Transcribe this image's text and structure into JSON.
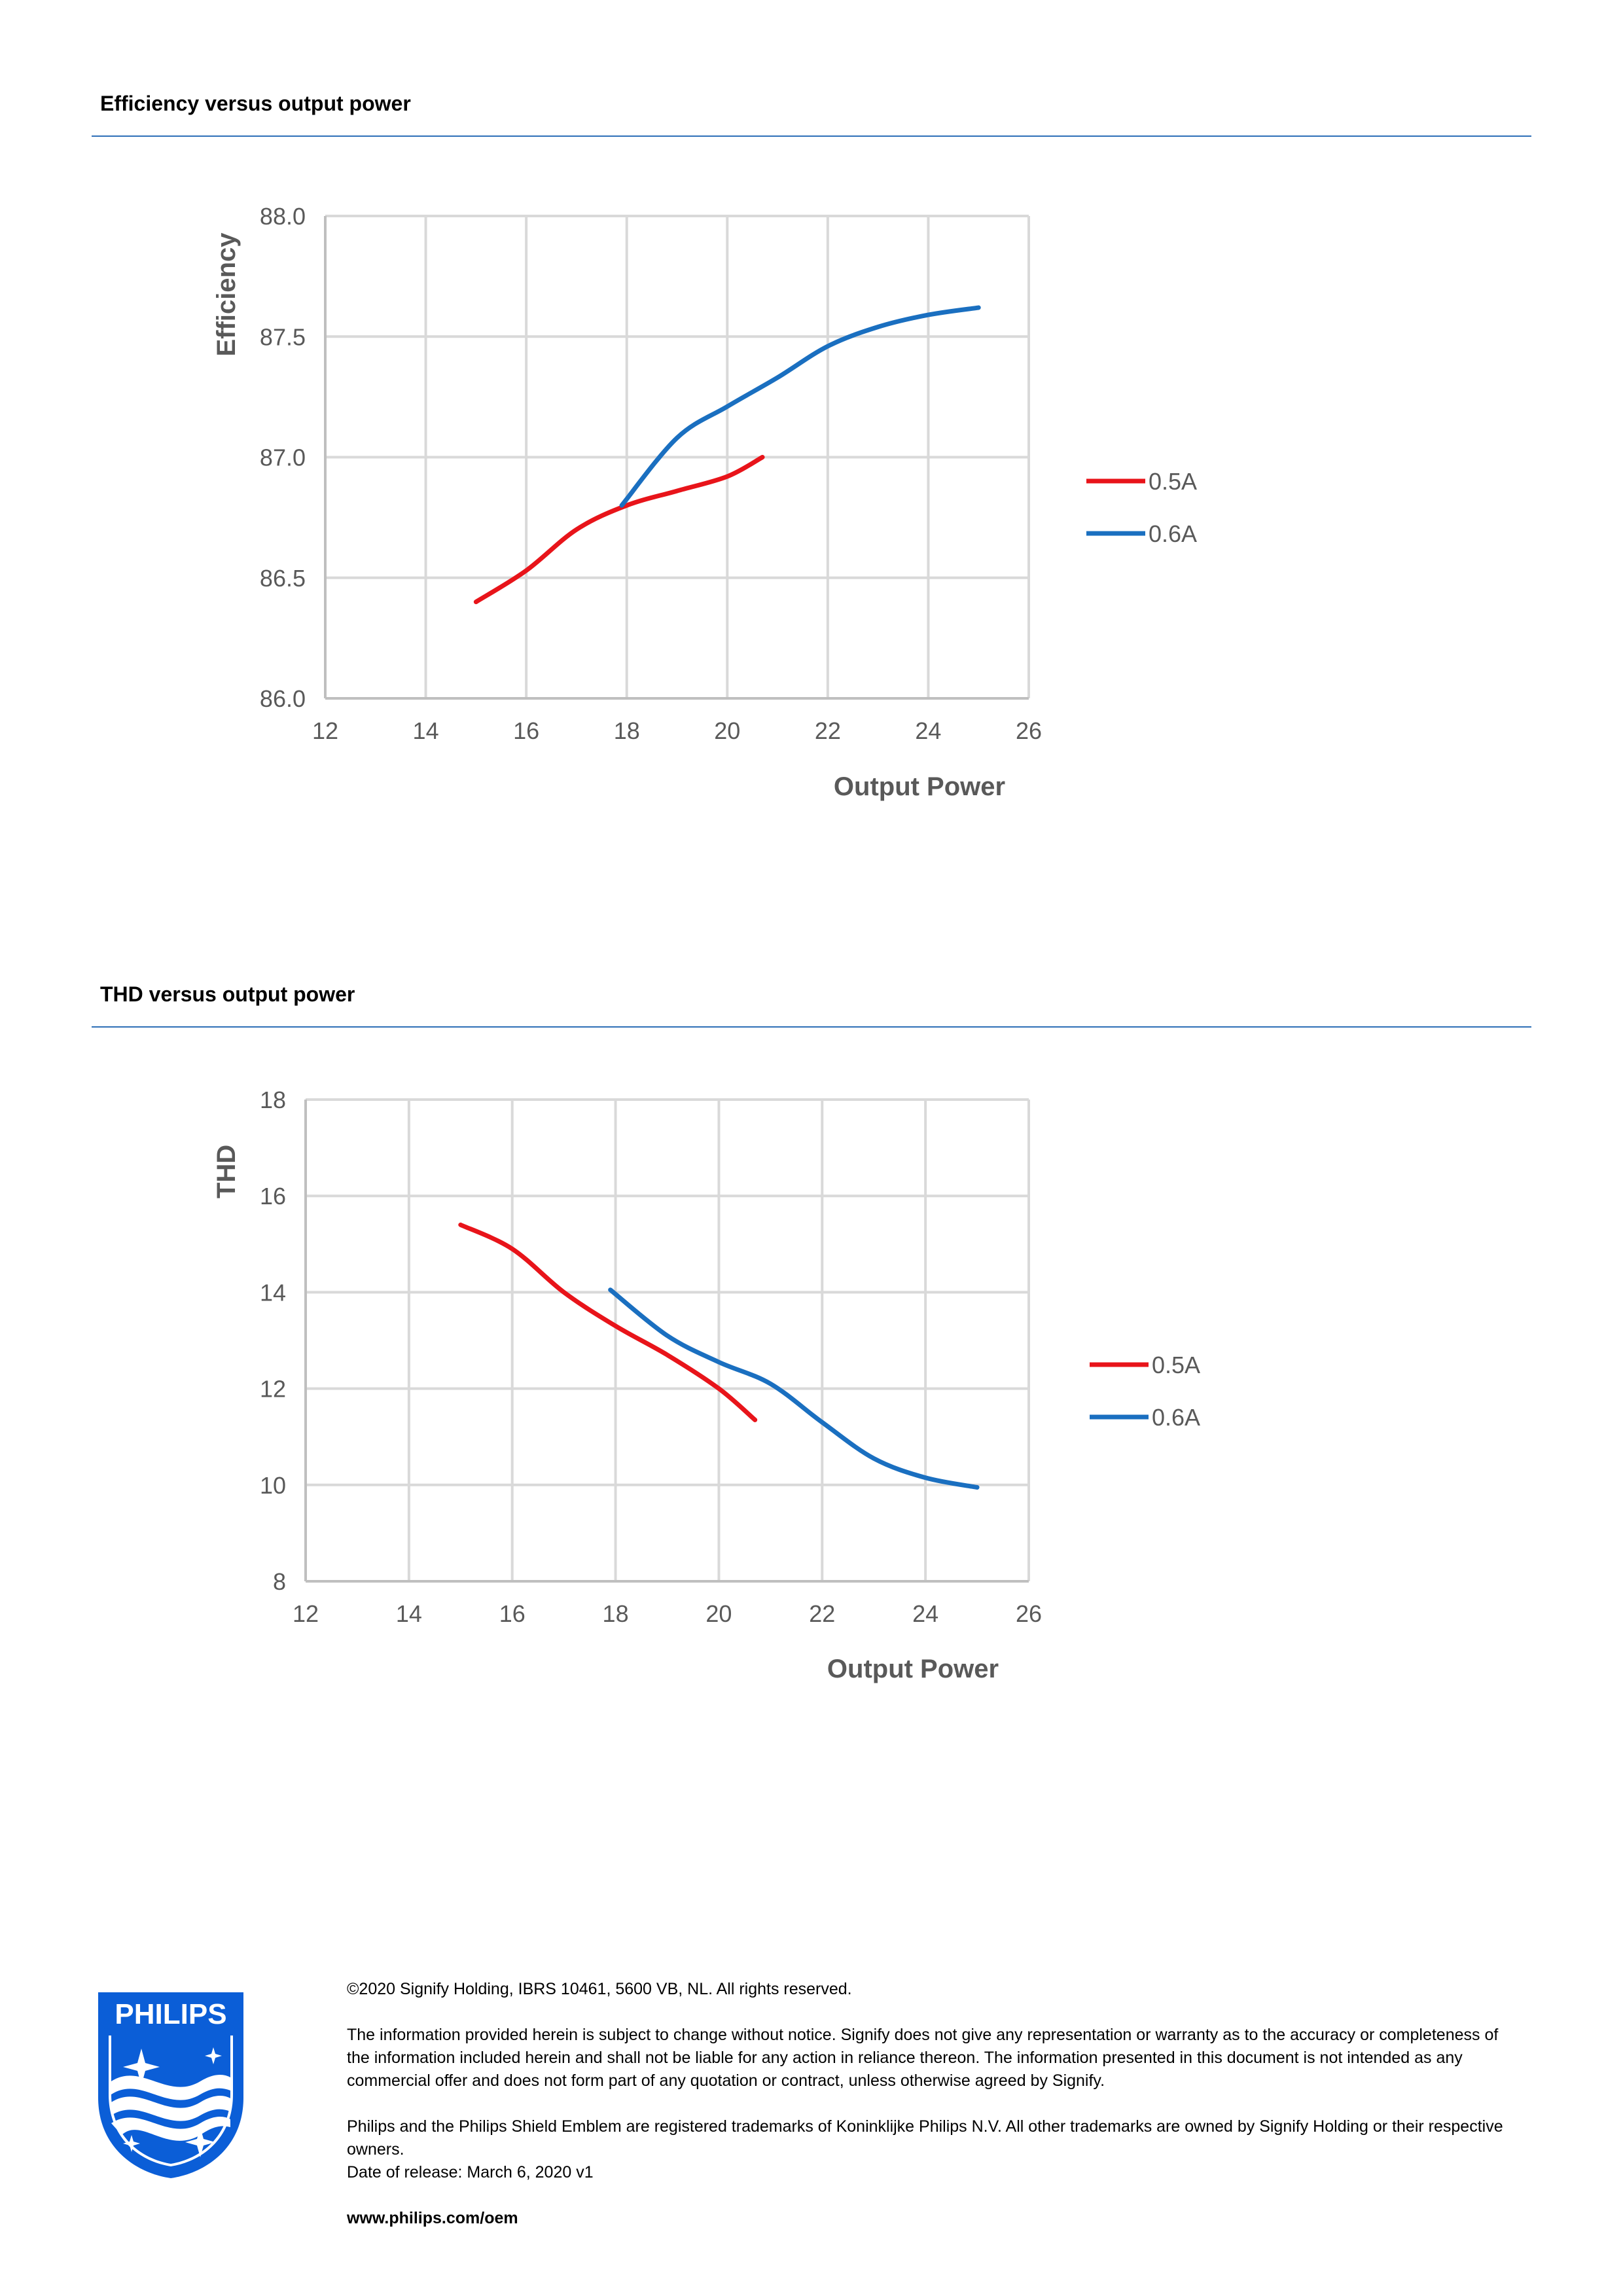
{
  "sections": [
    {
      "title": "Efficiency versus output power"
    },
    {
      "title": "THD versus output power"
    }
  ],
  "chart_data": [
    {
      "type": "line",
      "title": "",
      "xlabel": "Output Power",
      "ylabel": "Efficiency",
      "xlim": [
        12,
        26
      ],
      "ylim": [
        86.0,
        88.0
      ],
      "x_ticks": [
        "12",
        "14",
        "16",
        "18",
        "20",
        "22",
        "24",
        "26"
      ],
      "y_ticks": [
        "86.0",
        "86.5",
        "87.0",
        "87.5",
        "88.0"
      ],
      "grid": true,
      "legend": "right",
      "series": [
        {
          "name": "0.5A",
          "color": "#e8141a",
          "x": [
            15.0,
            16.0,
            17.0,
            18.0,
            19.0,
            20.0,
            20.7
          ],
          "y": [
            86.4,
            86.53,
            86.7,
            86.8,
            86.86,
            86.92,
            87.0
          ]
        },
        {
          "name": "0.6A",
          "color": "#1a6fc0",
          "x": [
            17.9,
            19.0,
            20.0,
            21.0,
            22.0,
            23.0,
            24.0,
            25.0
          ],
          "y": [
            86.8,
            87.08,
            87.21,
            87.33,
            87.46,
            87.54,
            87.59,
            87.62
          ]
        }
      ]
    },
    {
      "type": "line",
      "title": "",
      "xlabel": "Output Power",
      "ylabel": "THD",
      "xlim": [
        12,
        26
      ],
      "ylim": [
        8,
        18
      ],
      "x_ticks": [
        "12",
        "14",
        "16",
        "18",
        "20",
        "22",
        "24",
        "26"
      ],
      "y_ticks": [
        "8",
        "10",
        "12",
        "14",
        "16",
        "18"
      ],
      "grid": true,
      "legend": "right",
      "series": [
        {
          "name": "0.5A",
          "color": "#e8141a",
          "x": [
            15.0,
            16.0,
            17.0,
            18.0,
            19.0,
            20.0,
            20.7
          ],
          "y": [
            15.4,
            14.9,
            14.0,
            13.3,
            12.7,
            12.0,
            11.35
          ]
        },
        {
          "name": "0.6A",
          "color": "#1a6fc0",
          "x": [
            17.9,
            19.0,
            20.0,
            21.0,
            22.0,
            23.0,
            24.0,
            25.0
          ],
          "y": [
            14.05,
            13.1,
            12.55,
            12.1,
            11.3,
            10.55,
            10.15,
            9.95
          ]
        }
      ]
    }
  ],
  "footer": {
    "copyright": "©2020 Signify Holding, IBRS 10461, 5600 VB, NL. All rights reserved.",
    "disclaimer": "The information provided herein is subject to change without notice. Signify does not give any representation or warranty as to the accuracy or completeness of the information included herein and shall not be liable for any action in reliance thereon. The information presented in this document is not intended as any commercial offer and does not form part of any quotation or contract, unless otherwise agreed by Signify.",
    "trademarks": "Philips and the Philips Shield Emblem are registered trademarks of Koninklijke Philips N.V. All other trademarks are owned by Signify Holding or their respective owners.",
    "release": "Date of release: March 6, 2020 v1",
    "url": "www.philips.com/oem"
  },
  "logo": {
    "text": "PHILIPS",
    "icon": "philips-shield-icon",
    "color": "#0b5ed7"
  }
}
